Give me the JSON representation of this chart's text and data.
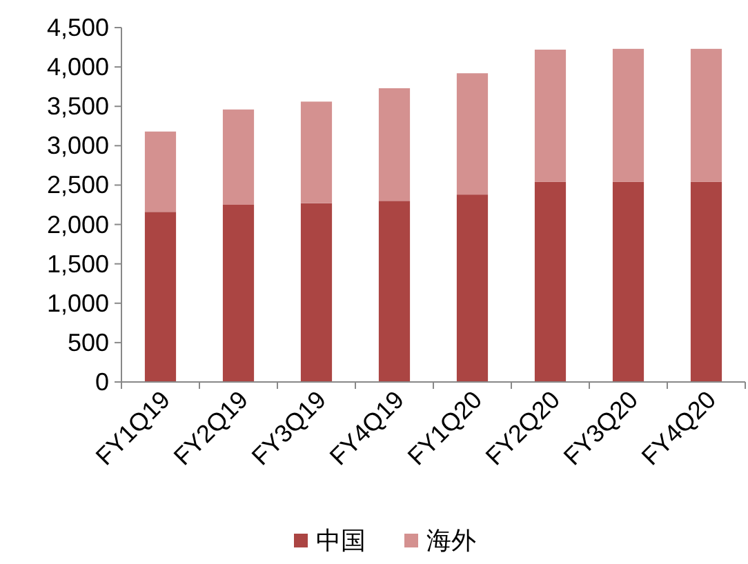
{
  "chart_data": {
    "type": "bar",
    "stacked": true,
    "categories": [
      "FY1Q19",
      "FY2Q19",
      "FY3Q19",
      "FY4Q19",
      "FY1Q20",
      "FY2Q20",
      "FY3Q20",
      "FY4Q20"
    ],
    "series": [
      {
        "name": "中国",
        "color": "#ab4543",
        "values": [
          2160,
          2250,
          2270,
          2300,
          2380,
          2540,
          2540,
          2540
        ]
      },
      {
        "name": "海外",
        "color": "#d49190",
        "values": [
          1020,
          1210,
          1290,
          1430,
          1540,
          1680,
          1690,
          1690
        ]
      }
    ],
    "ylim": [
      0,
      4500
    ],
    "yticks": [
      {
        "value": 0,
        "label": "0"
      },
      {
        "value": 500,
        "label": "500"
      },
      {
        "value": 1000,
        "label": "1,000"
      },
      {
        "value": 1500,
        "label": "1,500"
      },
      {
        "value": 2000,
        "label": "2,000"
      },
      {
        "value": 2500,
        "label": "2,500"
      },
      {
        "value": 3000,
        "label": "3,000"
      },
      {
        "value": 3500,
        "label": "3,500"
      },
      {
        "value": 4000,
        "label": "4,000"
      },
      {
        "value": 4500,
        "label": "4,500"
      }
    ],
    "legend": "bottom"
  }
}
